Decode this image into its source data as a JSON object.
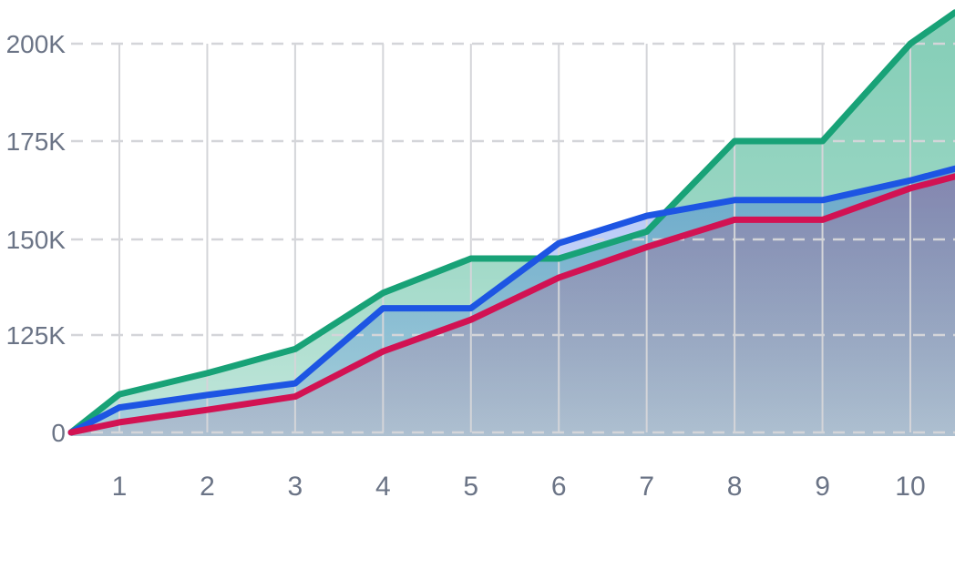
{
  "page": {
    "background_color": "#ffffff",
    "description": "Full-bleed area chart, no title, no legend"
  },
  "chart": {
    "label_color": "#6b7486",
    "gridline_color": "#d4d5d9",
    "y_axis": {
      "ticks": [
        {
          "label": "200K",
          "value_k": 200
        },
        {
          "label": "175K",
          "value_k": 175
        },
        {
          "label": "150K",
          "value_k": 150
        },
        {
          "label": "125K",
          "value_k": 125
        },
        {
          "label": "0",
          "value_k": 0
        }
      ],
      "scale_note": "ticks evenly spaced although values are non-linear"
    },
    "x_axis": {
      "labels": [
        "1",
        "2",
        "3",
        "4",
        "5",
        "6",
        "7",
        "8",
        "9",
        "10"
      ]
    }
  },
  "chart_data": {
    "type": "area",
    "title": "",
    "xlabel": "",
    "ylabel": "",
    "unit": "thousands (K)",
    "categories": [
      1,
      2,
      3,
      4,
      5,
      6,
      7,
      8,
      9,
      10
    ],
    "y_tick_labels": [
      "0",
      "125K",
      "150K",
      "175K",
      "200K"
    ],
    "y_tick_values_k": [
      0,
      125,
      150,
      175,
      200
    ],
    "grid": {
      "horizontal": "dashed",
      "vertical": "solid"
    },
    "legend_position": "none",
    "series": [
      {
        "name": "green",
        "color": "#18a277",
        "start_value_k": 0,
        "values_k": [
          49,
          76,
          107,
          136,
          145,
          145,
          152,
          175,
          175,
          200
        ],
        "right_edge_value_k": 208
      },
      {
        "name": "blue",
        "color": "#1d55e3",
        "start_value_k": 0,
        "values_k": [
          32,
          48,
          63,
          132,
          132,
          149,
          156,
          160,
          160,
          165
        ],
        "right_edge_value_k": 168
      },
      {
        "name": "red",
        "color": "#d21253",
        "start_value_k": 0,
        "values_k": [
          13,
          29,
          46,
          104,
          129,
          140,
          148,
          155,
          155,
          163
        ],
        "right_edge_value_k": 166
      }
    ]
  }
}
